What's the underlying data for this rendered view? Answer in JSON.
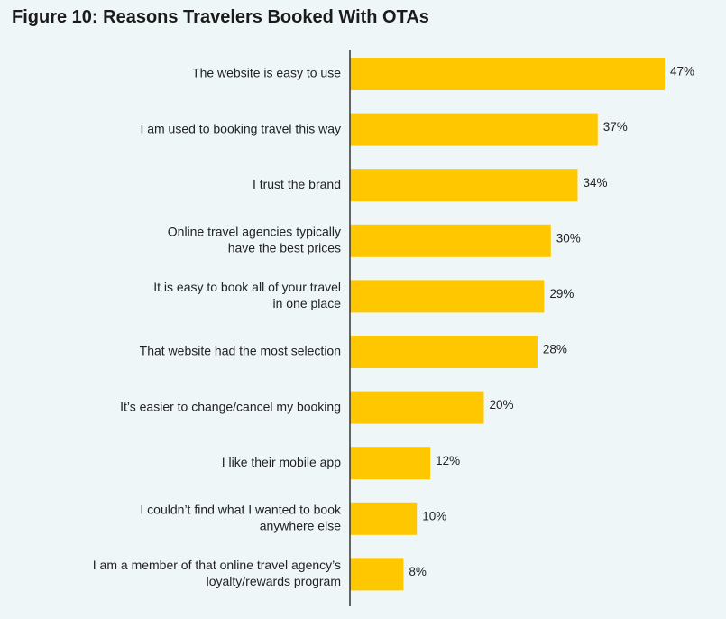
{
  "title": "Figure 10: Reasons Travelers Booked With OTAs",
  "colors": {
    "bar": "#ffc700",
    "axis": "#333333",
    "text": "#222222",
    "background": "#eef6f8"
  },
  "chart_data": {
    "type": "bar",
    "orientation": "horizontal",
    "title": "Figure 10: Reasons Travelers Booked With OTAs",
    "categories": [
      [
        "The website is easy to use"
      ],
      [
        "I am used to booking travel this way"
      ],
      [
        "I trust the brand"
      ],
      [
        "Online travel agencies typically",
        "have the best prices"
      ],
      [
        "It is easy to book all of your travel",
        "in one place"
      ],
      [
        "That website had the most selection"
      ],
      [
        "It’s easier to change/cancel my booking"
      ],
      [
        "I like their mobile app"
      ],
      [
        "I couldn’t find what I wanted to book",
        "anywhere else"
      ],
      [
        "I am a member of that online travel agency’s",
        "loyalty/rewards program"
      ]
    ],
    "values": [
      47,
      37,
      34,
      30,
      29,
      28,
      20,
      12,
      10,
      8
    ],
    "value_labels": [
      "47%",
      "37%",
      "34%",
      "30%",
      "29%",
      "28%",
      "20%",
      "12%",
      "10%",
      "8%"
    ],
    "xlim": [
      0,
      47
    ],
    "grid": false,
    "legend": "none"
  }
}
